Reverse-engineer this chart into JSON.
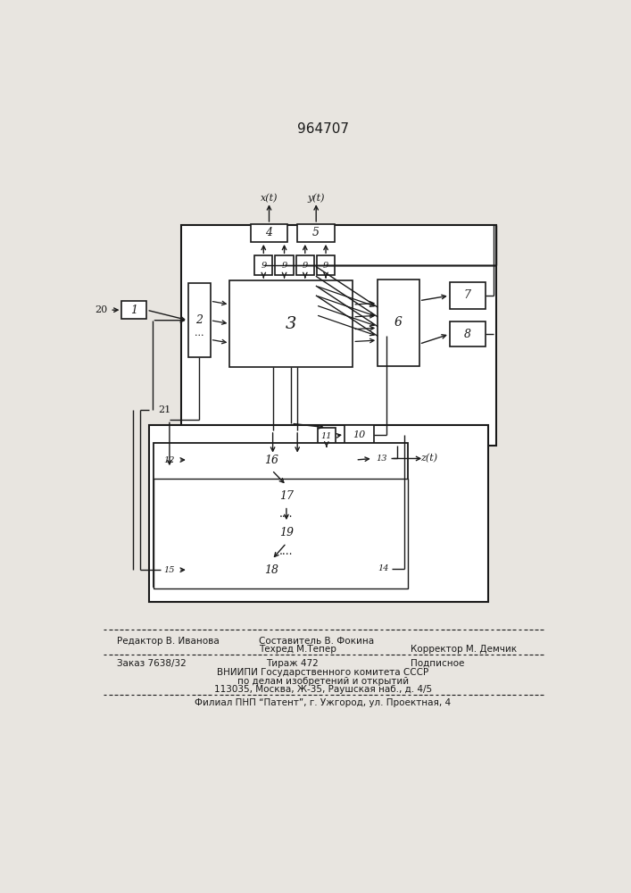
{
  "title": "964707",
  "title_fontsize": 11,
  "bg_color": "#e8e5e0",
  "line_color": "#1a1a1a",
  "box_fill": "#ffffff",
  "footer": {
    "line1_left": "Редактор В. Иванова",
    "line1_center": "Составитель В. Фокина",
    "line2_center": "Техред М.Тепер",
    "line2_right": "Корректор М. Демчик",
    "line3_left": "Заказ 7638/32",
    "line3_center": "Тираж 472",
    "line3_right": "Подписное",
    "line4": "ВНИИПИ Государственного комитета СССР",
    "line5": "по делам изобретений и открытий",
    "line6": "113035, Москва, Ж-35, Раушская наб., д. 4/5",
    "line7": "Филиал ПНП “Патент”, г. Ужгород, ул. Проектная, 4"
  }
}
